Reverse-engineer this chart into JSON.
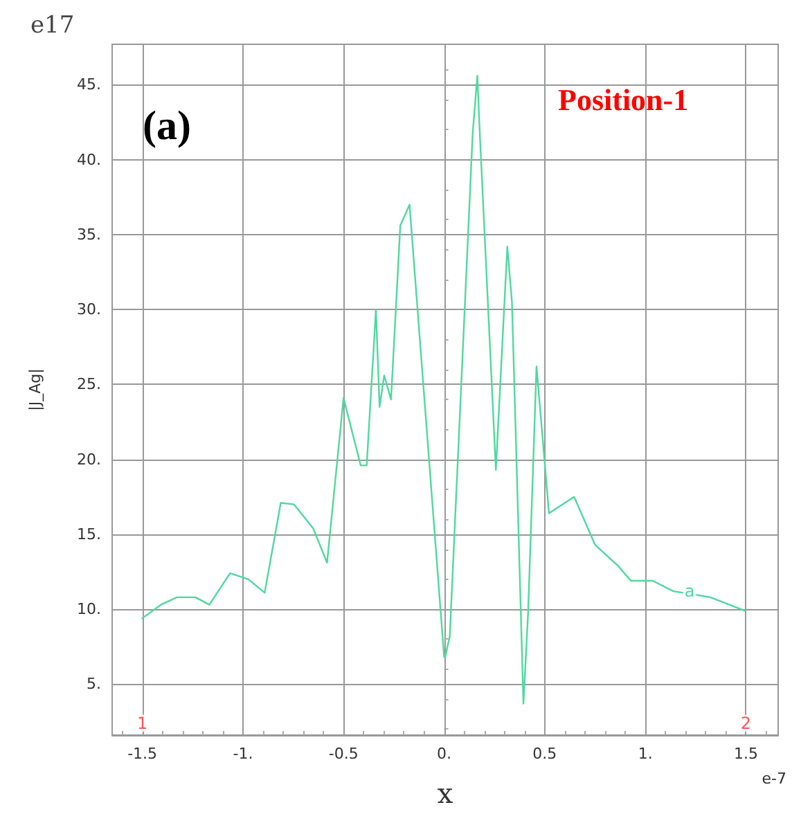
{
  "chart_data": {
    "type": "line",
    "xlabel": "x",
    "ylabel": "|J_Ag|",
    "annotations": [
      "e17",
      "e-7",
      "(a)",
      "Position-1",
      {
        "text": "a",
        "x": 1.22,
        "y": 11.2
      },
      {
        "text": "1",
        "x": -1.5,
        "y": 2.4
      },
      {
        "text": "2",
        "x": 1.5,
        "y": 2.4
      }
    ],
    "series": [
      {
        "color": "#4fd8a0",
        "x": [
          -1.5,
          -1.408,
          -1.328,
          -1.236,
          -1.167,
          -1.064,
          -0.973,
          -0.892,
          -0.812,
          -0.747,
          -0.651,
          -0.582,
          -0.5,
          -0.415,
          -0.385,
          -0.339,
          -0.321,
          -0.298,
          -0.264,
          -0.218,
          -0.172,
          0.0,
          0.005,
          0.028,
          0.142,
          0.165,
          0.177,
          0.257,
          0.314,
          0.337,
          0.394,
          0.417,
          0.459,
          0.521,
          0.646,
          0.75,
          0.864,
          0.928,
          1.036,
          1.139,
          1.323,
          1.495
        ],
        "values": [
          9.4,
          10.3,
          10.8,
          10.8,
          10.3,
          12.4,
          12.0,
          11.1,
          17.1,
          17.0,
          15.4,
          13.1,
          24.1,
          19.6,
          19.6,
          30.0,
          23.5,
          25.6,
          24.0,
          35.6,
          37.0,
          6.8,
          6.8,
          8.2,
          41.8,
          45.6,
          41.8,
          19.3,
          34.2,
          30.5,
          3.7,
          9.7,
          26.2,
          16.4,
          17.5,
          14.3,
          12.9,
          11.9,
          11.9,
          11.2,
          10.8,
          9.9
        ]
      }
    ],
    "xlim": [
      -1.65,
      1.66
    ],
    "ylim": [
      1.6,
      47.7
    ],
    "xticks": [
      -1.5,
      {
        "value": -1,
        "label": "-1."
      },
      -0.5,
      {
        "value": 0,
        "label": "0."
      },
      0.5,
      {
        "value": 1,
        "label": "1."
      },
      1.5
    ],
    "yticks": [
      {
        "value": 5,
        "label": "5."
      },
      {
        "value": 10,
        "label": "10."
      },
      {
        "value": 15,
        "label": "15."
      },
      {
        "value": 20,
        "label": "20."
      },
      {
        "value": 25,
        "label": "25."
      },
      {
        "value": 30,
        "label": "30."
      },
      {
        "value": 35,
        "label": "35."
      },
      {
        "value": 40,
        "label": "40."
      },
      {
        "value": 45,
        "label": "45."
      }
    ],
    "grid": true,
    "marker": "none",
    "line_style": "solid"
  }
}
